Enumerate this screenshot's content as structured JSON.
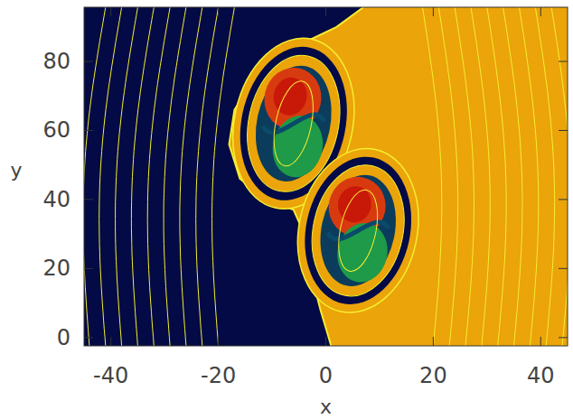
{
  "chart_data": {
    "type": "heatmap",
    "x_label": "x",
    "y_label": "y",
    "xlim": [
      -45,
      45
    ],
    "ylim": [
      -2.4,
      95.7
    ],
    "xticks": [
      -40,
      -20,
      0,
      20,
      40
    ],
    "yticks": [
      0,
      20,
      40,
      60,
      80
    ],
    "interface": {
      "x": [
        7,
        2,
        -6,
        -13,
        -17,
        -18,
        -16,
        -11,
        -6,
        -4,
        -3,
        -1,
        1
      ],
      "y": [
        95.7,
        90,
        84,
        76,
        66,
        56,
        46,
        40,
        37,
        30,
        20,
        8,
        -2.4
      ]
    },
    "vortices": [
      {
        "x": -6,
        "y": 62,
        "rx": 11,
        "ry": 25
      },
      {
        "x": 6,
        "y": 31,
        "rx": 11,
        "ry": 24
      }
    ],
    "field_lines_x": [
      -44,
      -41,
      -38,
      -35,
      -32,
      -29,
      -26,
      -23,
      -20,
      20,
      23,
      26,
      29,
      32,
      35,
      38,
      41,
      44
    ],
    "grid": false
  }
}
